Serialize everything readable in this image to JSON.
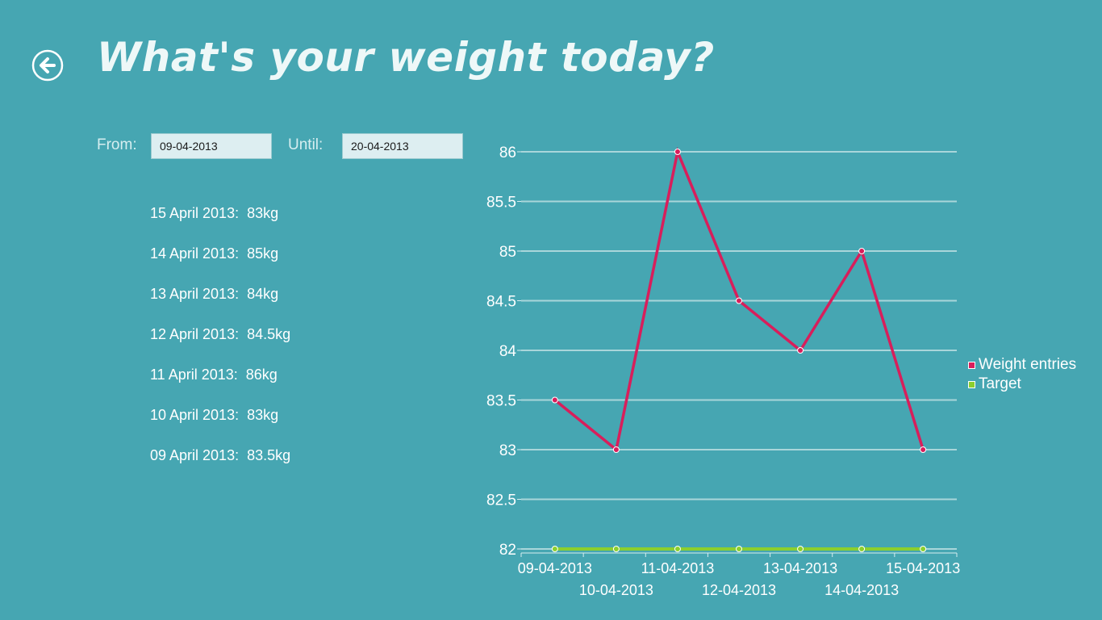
{
  "header": {
    "title": "What's your weight today?",
    "back_icon": "arrow-left-circle-icon"
  },
  "filter": {
    "from_label": "From:",
    "from_value": "09-04-2013",
    "until_label": "Until:",
    "until_value": "20-04-2013"
  },
  "entries": [
    {
      "text": "15 April 2013:  83kg"
    },
    {
      "text": "14 April 2013:  85kg"
    },
    {
      "text": "13 April 2013:  84kg"
    },
    {
      "text": "12 April 2013:  84.5kg"
    },
    {
      "text": "11 April 2013:  86kg"
    },
    {
      "text": "10 April 2013:  83kg"
    },
    {
      "text": "09 April 2013:  83.5kg"
    }
  ],
  "colors": {
    "background": "#46a6b2",
    "weight_series": "#d81e5b",
    "target_series": "#8ccf2e",
    "gridline": "#a9d6da"
  },
  "chart_data": {
    "type": "line",
    "x": [
      "09-04-2013",
      "10-04-2013",
      "11-04-2013",
      "12-04-2013",
      "13-04-2013",
      "14-04-2013",
      "15-04-2013"
    ],
    "series": [
      {
        "name": "Weight entries",
        "values": [
          83.5,
          83,
          86,
          84.5,
          84,
          85,
          83
        ]
      },
      {
        "name": "Target",
        "values": [
          82,
          82,
          82,
          82,
          82,
          82,
          82
        ]
      }
    ],
    "ylim": [
      82,
      86
    ],
    "yticks": [
      "82",
      "82.5",
      "83",
      "83.5",
      "84",
      "84.5",
      "85",
      "85.5",
      "86"
    ],
    "grid": true,
    "legend_position": "right",
    "title": "",
    "xlabel": "",
    "ylabel": ""
  }
}
